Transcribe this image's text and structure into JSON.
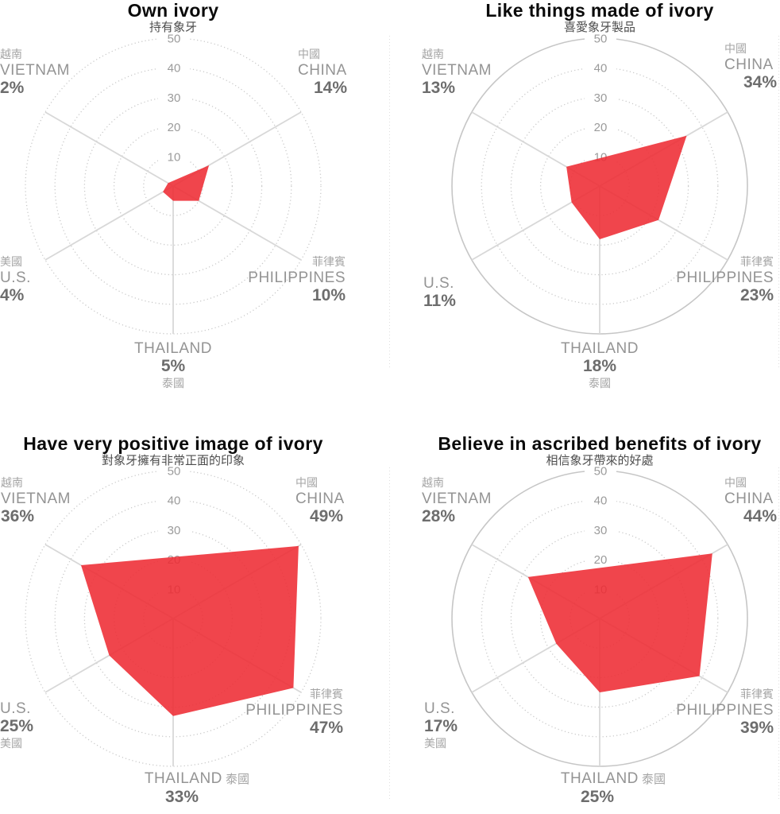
{
  "page": {
    "background": "#ffffff",
    "description_labels": {
      "tick_values": [
        10,
        20,
        30,
        40,
        50
      ]
    }
  },
  "style": {
    "fill_color": "#ee2b33",
    "fill_opacity": 0.88,
    "ring_dotted_color": "#c9c9c9",
    "ring_solid_color": "#c6c6c6",
    "spoke_color": "#d8d8d8",
    "tick_color": "#9b9b9b",
    "zh_label_color": "#a5a5a5",
    "country_label_color": "#949494",
    "pct_label_color": "#6d6d6d",
    "title_color": "#0a0a0a",
    "subtitle_color": "#4d4d4d",
    "divider_color": "#dedede"
  },
  "chart_data": [
    {
      "type": "radar",
      "title": "Own ivory",
      "subtitle_zh": "持有象牙",
      "max": 50,
      "ticks": [
        10,
        20,
        30,
        40,
        50
      ],
      "categories": [
        "CHINA",
        "PHILIPPINES",
        "THAILAND",
        "U.S.",
        "VIETNAM"
      ],
      "categories_zh": [
        "中國",
        "菲律賓",
        "泰國",
        "美國",
        "越南"
      ],
      "values": [
        14,
        10,
        5,
        4,
        2
      ],
      "pct_labels": [
        "14%",
        "10%",
        "5%",
        "4%",
        "2%"
      ],
      "outer_ring": "dotted",
      "grid": "dotted-circles",
      "legend": "none"
    },
    {
      "type": "radar",
      "title": "Like things made of ivory",
      "subtitle_zh": "喜愛象牙製品",
      "max": 50,
      "ticks": [
        10,
        20,
        30,
        40,
        50
      ],
      "categories": [
        "CHINA",
        "PHILIPPINES",
        "THAILAND",
        "U.S.",
        "VIETNAM"
      ],
      "categories_zh": [
        "中國",
        "菲律賓",
        "泰國",
        "",
        "越南"
      ],
      "values": [
        34,
        23,
        18,
        11,
        13
      ],
      "pct_labels": [
        "34%",
        "23%",
        "18%",
        "11%",
        "13%"
      ],
      "outer_ring": "solid",
      "grid": "dotted-circles",
      "legend": "none"
    },
    {
      "type": "radar",
      "title": "Have very positive image of ivory",
      "subtitle_zh": "對象牙擁有非常正面的印象",
      "max": 50,
      "ticks": [
        10,
        20,
        30,
        40,
        50
      ],
      "categories": [
        "CHINA",
        "PHILIPPINES",
        "THAILAND",
        "U.S.",
        "VIETNAM"
      ],
      "categories_zh": [
        "中國",
        "菲律賓",
        "泰國",
        "美國",
        "越南"
      ],
      "values": [
        49,
        47,
        33,
        25,
        36
      ],
      "pct_labels": [
        "49%",
        "47%",
        "33%",
        "25%",
        "36%"
      ],
      "outer_ring": "dotted",
      "grid": "dotted-circles",
      "legend": "none"
    },
    {
      "type": "radar",
      "title": "Believe in ascribed benefits of ivory",
      "subtitle_zh": "相信象牙帶來的好處",
      "max": 50,
      "ticks": [
        10,
        20,
        30,
        40,
        50
      ],
      "categories": [
        "CHINA",
        "PHILIPPINES",
        "THAILAND",
        "U.S.",
        "VIETNAM"
      ],
      "categories_zh": [
        "中國",
        "菲律賓",
        "泰國",
        "美國",
        "越南"
      ],
      "values": [
        44,
        39,
        25,
        17,
        28
      ],
      "pct_labels": [
        "44%",
        "39%",
        "25%",
        "17%",
        "28%"
      ],
      "outer_ring": "solid",
      "grid": "dotted-circles",
      "legend": "none"
    }
  ]
}
